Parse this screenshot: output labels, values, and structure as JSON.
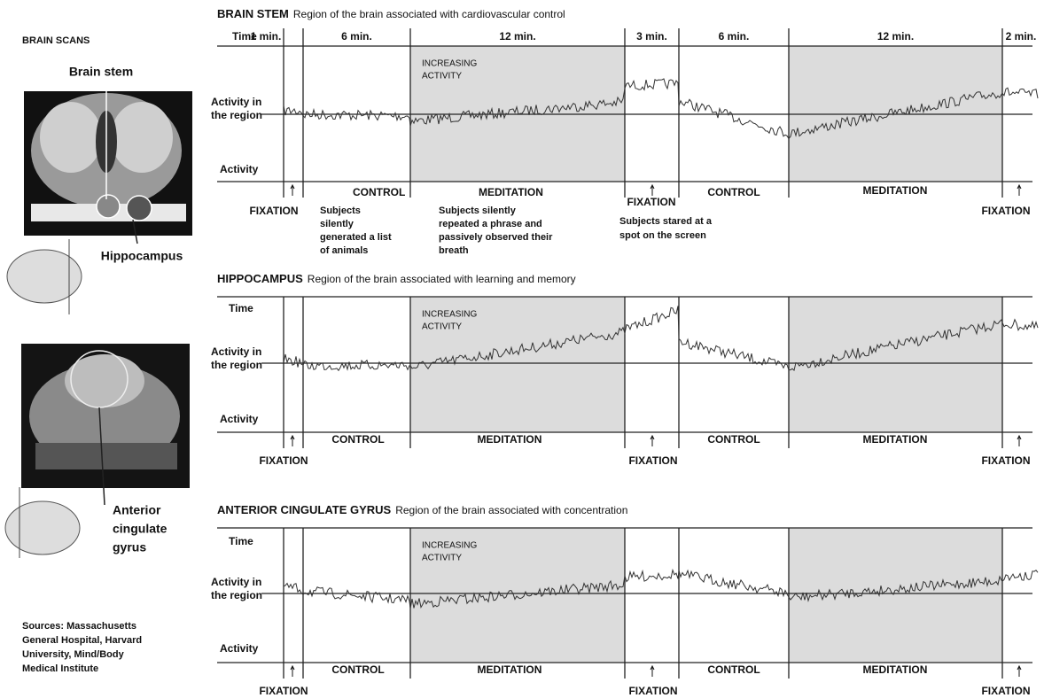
{
  "left": {
    "title": "BRAIN SCANS",
    "brain_stem": "Brain stem",
    "hippocampus": "Hippocampus",
    "acg": [
      "Anterior",
      "cingulate",
      "gyrus"
    ],
    "sources": [
      "Sources: Massachusetts",
      "General Hospital, Harvard",
      "University, Mind/Body",
      "Medical Institute"
    ]
  },
  "panels": [
    {
      "name": "BRAIN STEM",
      "description": "Region of the brain associated with cardiovascular control",
      "time": "Time",
      "durations": [
        "1 min.",
        "6 min.",
        "12 min.",
        "3 min.",
        "6 min.",
        "12 min.",
        "2 min."
      ],
      "activity_region": [
        "Activity in",
        "the region"
      ],
      "activity": "Activity",
      "increasing": [
        "INCREASING",
        "ACTIVITY"
      ],
      "phases": [
        "FIXATION",
        "CONTROL",
        "MEDITATION",
        "FIXATION",
        "CONTROL",
        "MEDITATION",
        "FIXATION"
      ],
      "notes": {
        "control": [
          "Subjects",
          "silently",
          "generated a list",
          "of animals"
        ],
        "meditation": [
          "Subjects silently",
          "repeated a phrase and",
          "passively observed their",
          "breath"
        ],
        "fixation": [
          "Subjects stared at a",
          "spot on the screen"
        ]
      }
    },
    {
      "name": "HIPPOCAMPUS",
      "description": "Region of the brain associated with learning and memory",
      "time": "Time",
      "activity_region": [
        "Activity in",
        "the region"
      ],
      "activity": "Activity",
      "increasing": [
        "INCREASING",
        "ACTIVITY"
      ],
      "phases": [
        "FIXATION",
        "CONTROL",
        "MEDITATION",
        "FIXATION",
        "CONTROL",
        "MEDITATION",
        "FIXATION"
      ]
    },
    {
      "name": "ANTERIOR CINGULATE GYRUS",
      "description": "Region of the brain associated with concentration",
      "time": "Time",
      "activity_region": [
        "Activity in",
        "the region"
      ],
      "activity": "Activity",
      "increasing": [
        "INCREASING",
        "ACTIVITY"
      ],
      "phases": [
        "FIXATION",
        "CONTROL",
        "MEDITATION",
        "FIXATION",
        "CONTROL",
        "MEDITATION",
        "FIXATION"
      ]
    }
  ]
}
